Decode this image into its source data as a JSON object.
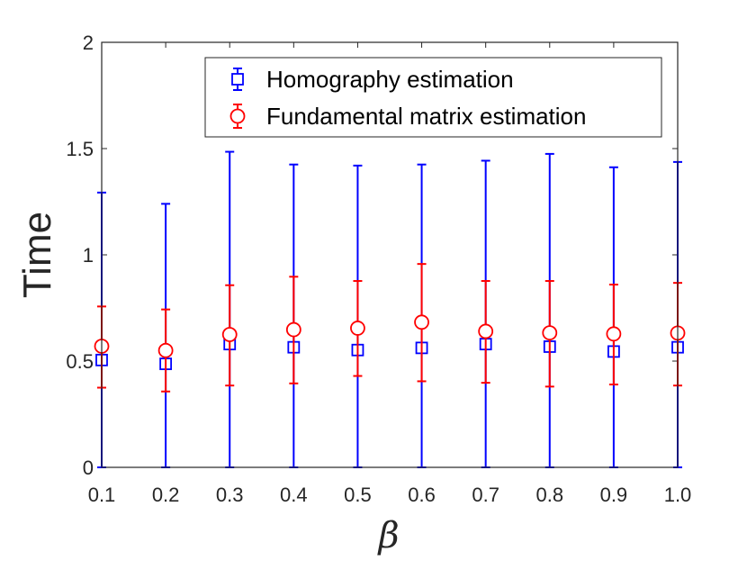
{
  "chart_data": {
    "type": "scatter",
    "title": "",
    "xlabel": "β",
    "ylabel": "Time",
    "x": [
      0.1,
      0.2,
      0.3,
      0.4,
      0.5,
      0.6,
      0.7,
      0.8,
      0.9,
      1.0
    ],
    "x_tick_labels": [
      "0.1",
      "0.2",
      "0.3",
      "0.4",
      "0.5",
      "0.6",
      "0.7",
      "0.8",
      "0.9",
      "1.0"
    ],
    "y_ticks": [
      0,
      0.5,
      1,
      1.5,
      2
    ],
    "y_tick_labels": [
      "0",
      "0.5",
      "1",
      "1.5",
      "2"
    ],
    "xlim": [
      0.1,
      1.0
    ],
    "ylim": [
      0,
      2
    ],
    "grid": false,
    "legend_position": "top-right",
    "series": [
      {
        "name": "Homography estimation",
        "marker": "square",
        "color": "#0000ff",
        "values": [
          0.505,
          0.487,
          0.58,
          0.565,
          0.552,
          0.562,
          0.58,
          0.568,
          0.545,
          0.565
        ],
        "upper": [
          1.293,
          1.24,
          1.485,
          1.425,
          1.42,
          1.425,
          1.443,
          1.475,
          1.412,
          1.437
        ],
        "lower": [
          0,
          0,
          0,
          0,
          0,
          0,
          0,
          0,
          0,
          0
        ]
      },
      {
        "name": "Fundamental matrix estimation",
        "marker": "circle",
        "color": "#ff0000",
        "values": [
          0.57,
          0.55,
          0.625,
          0.648,
          0.655,
          0.683,
          0.64,
          0.633,
          0.628,
          0.632
        ],
        "upper": [
          0.757,
          0.743,
          0.857,
          0.897,
          0.877,
          0.957,
          0.877,
          0.877,
          0.86,
          0.868
        ],
        "lower": [
          0.375,
          0.357,
          0.385,
          0.395,
          0.43,
          0.405,
          0.398,
          0.38,
          0.39,
          0.385
        ]
      }
    ]
  }
}
